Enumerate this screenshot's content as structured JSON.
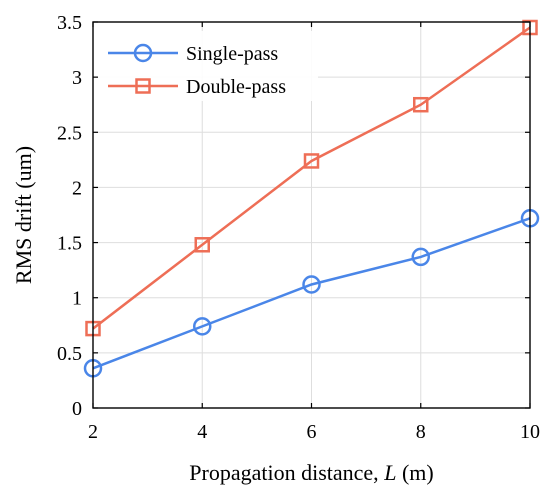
{
  "chart_data": {
    "type": "line",
    "title": "",
    "xlabel": "Propagation distance, L (m)",
    "xlabel_parts": [
      "Propagation distance, ",
      "L",
      " (m)"
    ],
    "ylabel": "RMS drift (um)",
    "x": [
      2,
      4,
      6,
      8,
      10
    ],
    "xlim": [
      2,
      10
    ],
    "ylim": [
      0,
      3.5
    ],
    "xticks": [
      "2",
      "4",
      "6",
      "8",
      "10"
    ],
    "yticks": [
      "0",
      "0.5",
      "1",
      "1.5",
      "2",
      "2.5",
      "3",
      "3.5"
    ],
    "ytick_values": [
      0,
      0.5,
      1,
      1.5,
      2,
      2.5,
      3,
      3.5
    ],
    "grid": true,
    "legend_position": "top-left",
    "series": [
      {
        "name": "Single-pass",
        "values": [
          0.36,
          0.74,
          1.12,
          1.37,
          1.72
        ],
        "color": "#4a86e8",
        "marker": "circle"
      },
      {
        "name": "Double-pass",
        "values": [
          0.72,
          1.48,
          2.24,
          2.75,
          3.45
        ],
        "color": "#ee6e56",
        "marker": "square"
      }
    ]
  }
}
